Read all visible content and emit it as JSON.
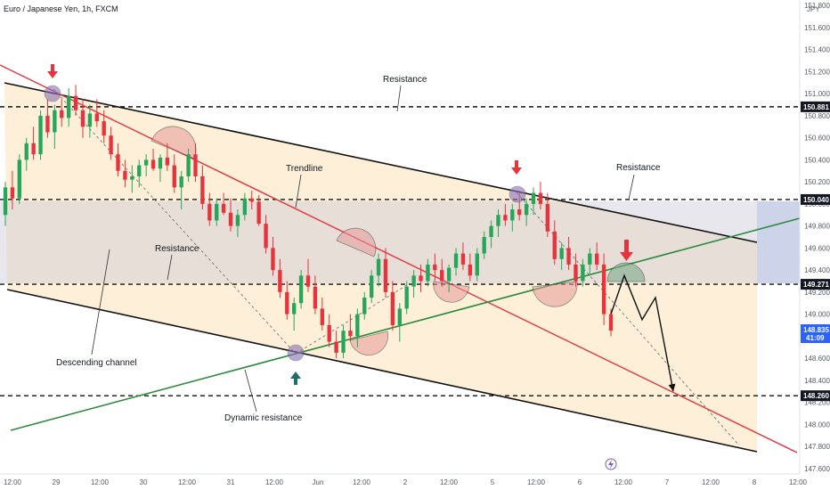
{
  "chart_data": {
    "type": "candlestick",
    "title": "Euro / Japanese Yen, 1h, FXCM",
    "currency": "JPY",
    "y_axis": {
      "ylim": [
        147.55,
        151.85
      ],
      "ticks": [
        147.6,
        147.8,
        148.0,
        148.2,
        148.4,
        148.6,
        148.8,
        149.0,
        149.2,
        149.4,
        149.6,
        149.8,
        150.0,
        150.2,
        150.4,
        150.6,
        150.8,
        151.0,
        151.2,
        151.4,
        151.6,
        151.8
      ],
      "tick_labels": [
        "147.600",
        "147.800",
        "148.000",
        "148.200",
        "148.400",
        "148.600",
        "148.800",
        "149.000",
        "149.200",
        "149.400",
        "149.600",
        "149.800",
        "150.000",
        "150.200",
        "150.400",
        "150.600",
        "150.800",
        "151.000",
        "151.200",
        "151.400",
        "151.600",
        "151.800"
      ]
    },
    "x_axis": {
      "labels": [
        "12:00",
        "29",
        "12:00",
        "30",
        "12:00",
        "31",
        "12:00",
        "Jun",
        "12:00",
        "2",
        "12:00",
        "5",
        "12:00",
        "6",
        "12:00",
        "7",
        "12:00",
        "8",
        "12:00"
      ]
    },
    "price_levels": [
      {
        "label": "150.881",
        "value": 150.881
      },
      {
        "label": "150.040",
        "value": 150.04
      },
      {
        "label": "149.271",
        "value": 149.271
      },
      {
        "label": "148.260",
        "value": 148.26
      }
    ],
    "current_price": {
      "value": "148.835",
      "countdown": "41:09"
    },
    "annotations": [
      "Resistance",
      "Resistance",
      "Resistance",
      "Trendline",
      "Descending channel",
      "Dynamic resistance"
    ],
    "candles": [
      [
        149.9,
        150.2,
        149.8,
        150.15
      ],
      [
        150.15,
        150.3,
        149.95,
        150.05
      ],
      [
        150.05,
        150.45,
        150.0,
        150.4
      ],
      [
        150.4,
        150.6,
        150.3,
        150.55
      ],
      [
        150.55,
        150.7,
        150.4,
        150.45
      ],
      [
        150.45,
        150.85,
        150.4,
        150.8
      ],
      [
        150.8,
        150.95,
        150.6,
        150.65
      ],
      [
        150.65,
        150.9,
        150.5,
        150.85
      ],
      [
        150.85,
        150.95,
        150.7,
        150.78
      ],
      [
        150.78,
        151.05,
        150.7,
        150.98
      ],
      [
        150.98,
        151.08,
        150.8,
        150.85
      ],
      [
        150.85,
        150.95,
        150.6,
        150.7
      ],
      [
        150.7,
        150.9,
        150.6,
        150.82
      ],
      [
        150.82,
        150.95,
        150.7,
        150.75
      ],
      [
        150.75,
        150.85,
        150.55,
        150.62
      ],
      [
        150.62,
        150.7,
        150.4,
        150.45
      ],
      [
        150.45,
        150.55,
        150.25,
        150.3
      ],
      [
        150.3,
        150.4,
        150.15,
        150.22
      ],
      [
        150.22,
        150.35,
        150.1,
        150.25
      ],
      [
        150.25,
        150.4,
        150.15,
        150.35
      ],
      [
        150.35,
        150.45,
        150.25,
        150.4
      ],
      [
        150.4,
        150.5,
        150.3,
        150.32
      ],
      [
        150.32,
        150.45,
        150.2,
        150.42
      ],
      [
        150.42,
        150.55,
        150.3,
        150.35
      ],
      [
        150.35,
        150.45,
        150.1,
        150.15
      ],
      [
        150.15,
        150.3,
        149.95,
        150.25
      ],
      [
        150.25,
        150.5,
        150.2,
        150.45
      ],
      [
        150.45,
        150.55,
        150.2,
        150.25
      ],
      [
        150.25,
        150.35,
        149.95,
        150.0
      ],
      [
        150.0,
        150.1,
        149.8,
        149.85
      ],
      [
        149.85,
        150.05,
        149.8,
        150.0
      ],
      [
        150.0,
        150.1,
        149.9,
        149.92
      ],
      [
        149.92,
        150.05,
        149.75,
        149.8
      ],
      [
        149.8,
        149.95,
        149.7,
        149.9
      ],
      [
        149.9,
        150.1,
        149.85,
        150.05
      ],
      [
        150.05,
        150.12,
        149.95,
        150.02
      ],
      [
        150.02,
        150.08,
        149.8,
        149.82
      ],
      [
        149.82,
        149.9,
        149.55,
        149.6
      ],
      [
        149.6,
        149.7,
        149.35,
        149.4
      ],
      [
        149.4,
        149.5,
        149.15,
        149.2
      ],
      [
        149.2,
        149.3,
        148.95,
        149.0
      ],
      [
        149.0,
        149.15,
        148.85,
        149.1
      ],
      [
        149.1,
        149.4,
        149.05,
        149.35
      ],
      [
        149.35,
        149.5,
        149.2,
        149.25
      ],
      [
        149.25,
        149.35,
        149.0,
        149.05
      ],
      [
        149.05,
        149.15,
        148.85,
        148.9
      ],
      [
        148.9,
        149.0,
        148.7,
        148.75
      ],
      [
        148.75,
        148.85,
        148.6,
        148.65
      ],
      [
        148.65,
        148.9,
        148.6,
        148.85
      ],
      [
        148.85,
        149.0,
        148.75,
        148.8
      ],
      [
        148.8,
        149.05,
        148.7,
        149.0
      ],
      [
        149.0,
        149.2,
        148.95,
        149.15
      ],
      [
        149.15,
        149.4,
        149.1,
        149.35
      ],
      [
        149.35,
        149.55,
        149.25,
        149.5
      ],
      [
        149.5,
        149.6,
        149.15,
        149.2
      ],
      [
        149.2,
        149.3,
        148.85,
        148.9
      ],
      [
        148.9,
        149.1,
        148.75,
        149.05
      ],
      [
        149.05,
        149.3,
        149.0,
        149.25
      ],
      [
        149.25,
        149.4,
        149.15,
        149.35
      ],
      [
        149.35,
        149.45,
        149.2,
        149.3
      ],
      [
        149.3,
        149.5,
        149.25,
        149.45
      ],
      [
        149.45,
        149.55,
        149.3,
        149.4
      ],
      [
        149.4,
        149.5,
        149.25,
        149.3
      ],
      [
        149.3,
        149.45,
        149.2,
        149.42
      ],
      [
        149.42,
        149.6,
        149.35,
        149.55
      ],
      [
        149.55,
        149.65,
        149.4,
        149.45
      ],
      [
        149.45,
        149.55,
        149.3,
        149.35
      ],
      [
        149.35,
        149.6,
        149.3,
        149.55
      ],
      [
        149.55,
        149.75,
        149.5,
        149.7
      ],
      [
        149.7,
        149.85,
        149.6,
        149.8
      ],
      [
        149.8,
        149.95,
        149.7,
        149.9
      ],
      [
        149.9,
        150.0,
        149.8,
        149.85
      ],
      [
        149.85,
        150.0,
        149.75,
        149.95
      ],
      [
        149.95,
        150.1,
        149.85,
        149.9
      ],
      [
        149.9,
        150.05,
        149.8,
        150.0
      ],
      [
        150.0,
        150.15,
        149.9,
        150.1
      ],
      [
        150.1,
        150.2,
        149.95,
        150.0
      ],
      [
        150.0,
        150.1,
        149.7,
        149.75
      ],
      [
        149.75,
        149.85,
        149.45,
        149.5
      ],
      [
        149.5,
        149.65,
        149.4,
        149.6
      ],
      [
        149.6,
        149.7,
        149.4,
        149.45
      ],
      [
        149.45,
        149.55,
        149.25,
        149.3
      ],
      [
        149.3,
        149.5,
        149.25,
        149.45
      ],
      [
        149.45,
        149.6,
        149.35,
        149.55
      ],
      [
        149.55,
        149.65,
        149.4,
        149.45
      ],
      [
        149.45,
        149.55,
        148.9,
        149.0
      ],
      [
        149.0,
        149.05,
        148.8,
        148.85
      ]
    ],
    "projection": [
      [
        0,
        149.0
      ],
      [
        6,
        149.35
      ],
      [
        14,
        148.95
      ],
      [
        20,
        149.15
      ],
      [
        28,
        148.3
      ]
    ]
  }
}
